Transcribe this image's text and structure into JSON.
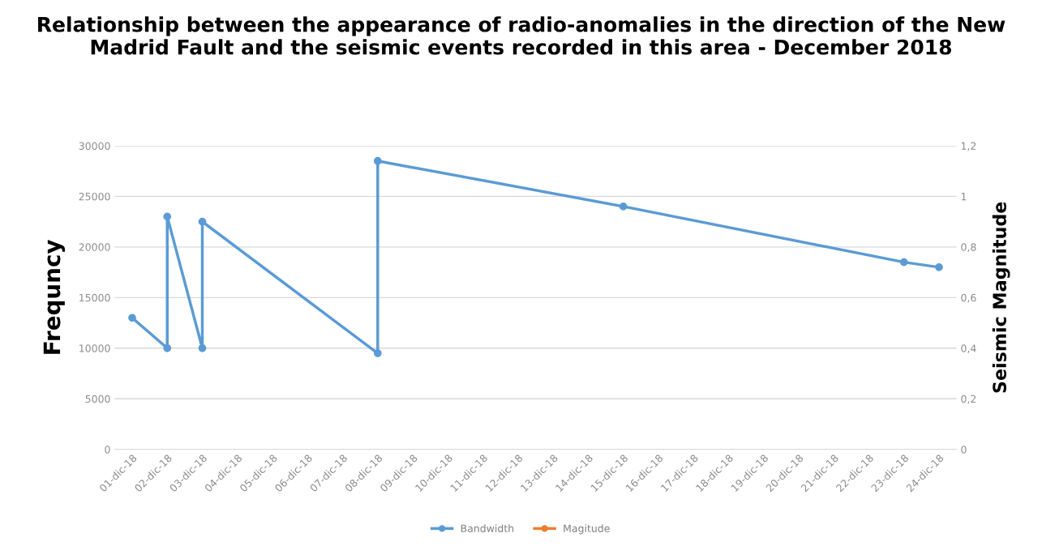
{
  "chart_data": {
    "type": "line",
    "title": "Relationship between the appearance of radio-anomalies in the direction of the New Madrid Fault and the seismic events recorded in this area - December 2018",
    "ylabel": "Frequncy",
    "y2label": "Seismic Magnitude",
    "series": [
      {
        "name": "Bandwidth",
        "color": "#5b9bd5",
        "x": [
          "2018-12-01",
          "2018-12-02",
          "2018-12-02",
          "2018-12-03",
          "2018-12-03",
          "2018-12-08",
          "2018-12-08",
          "2018-12-15",
          "2018-12-23",
          "2018-12-24"
        ],
        "values": [
          13000,
          10000,
          23000,
          10000,
          22500,
          9500,
          28500,
          24000,
          18500,
          18000
        ]
      },
      {
        "name": "Magitude",
        "color": "#ed7d31"
      }
    ],
    "xlim": [
      "2018-11-30T12:00",
      "2018-12-24T12:00"
    ],
    "xticks": [
      {
        "value": "2018-12-01",
        "label": "01-dic-18"
      },
      {
        "value": "2018-12-02",
        "label": "02-dic-18"
      },
      {
        "value": "2018-12-03",
        "label": "03-dic-18"
      },
      {
        "value": "2018-12-04",
        "label": "04-dic-18"
      },
      {
        "value": "2018-12-05",
        "label": "05-dic-18"
      },
      {
        "value": "2018-12-06",
        "label": "06-dic-18"
      },
      {
        "value": "2018-12-07",
        "label": "07-dic-18"
      },
      {
        "value": "2018-12-08",
        "label": "08-dic-18"
      },
      {
        "value": "2018-12-09",
        "label": "09-dic-18"
      },
      {
        "value": "2018-12-10",
        "label": "10-dic-18"
      },
      {
        "value": "2018-12-11",
        "label": "11-dic-18"
      },
      {
        "value": "2018-12-12",
        "label": "12-dic-18"
      },
      {
        "value": "2018-12-13",
        "label": "13-dic-18"
      },
      {
        "value": "2018-12-14",
        "label": "14-dic-18"
      },
      {
        "value": "2018-12-15",
        "label": "15-dic-18"
      },
      {
        "value": "2018-12-16",
        "label": "16-dic-18"
      },
      {
        "value": "2018-12-17",
        "label": "17-dic-18"
      },
      {
        "value": "2018-12-18",
        "label": "18-dic-18"
      },
      {
        "value": "2018-12-19",
        "label": "19-dic-18"
      },
      {
        "value": "2018-12-20",
        "label": "20-dic-18"
      },
      {
        "value": "2018-12-21",
        "label": "21-dic-18"
      },
      {
        "value": "2018-12-22",
        "label": "22-dic-18"
      },
      {
        "value": "2018-12-23",
        "label": "23-dic-18"
      },
      {
        "value": "2018-12-24",
        "label": "24-dic-18"
      }
    ],
    "ylim": [
      0,
      30000
    ],
    "yticks": [
      0,
      5000,
      10000,
      15000,
      20000,
      25000,
      30000
    ],
    "y2lim": [
      0,
      1.2
    ],
    "y2ticks": [
      0,
      {
        "value": 0.2,
        "label": "0,2"
      },
      {
        "value": 0.4,
        "label": "0,4"
      },
      {
        "value": 0.6,
        "label": "0,6"
      },
      {
        "value": 0.8,
        "label": "0,8"
      },
      1,
      {
        "value": 1.2,
        "label": "1,2"
      }
    ],
    "grid": "y",
    "legend": "bottom",
    "marker": "circle",
    "line_style": "solid"
  }
}
